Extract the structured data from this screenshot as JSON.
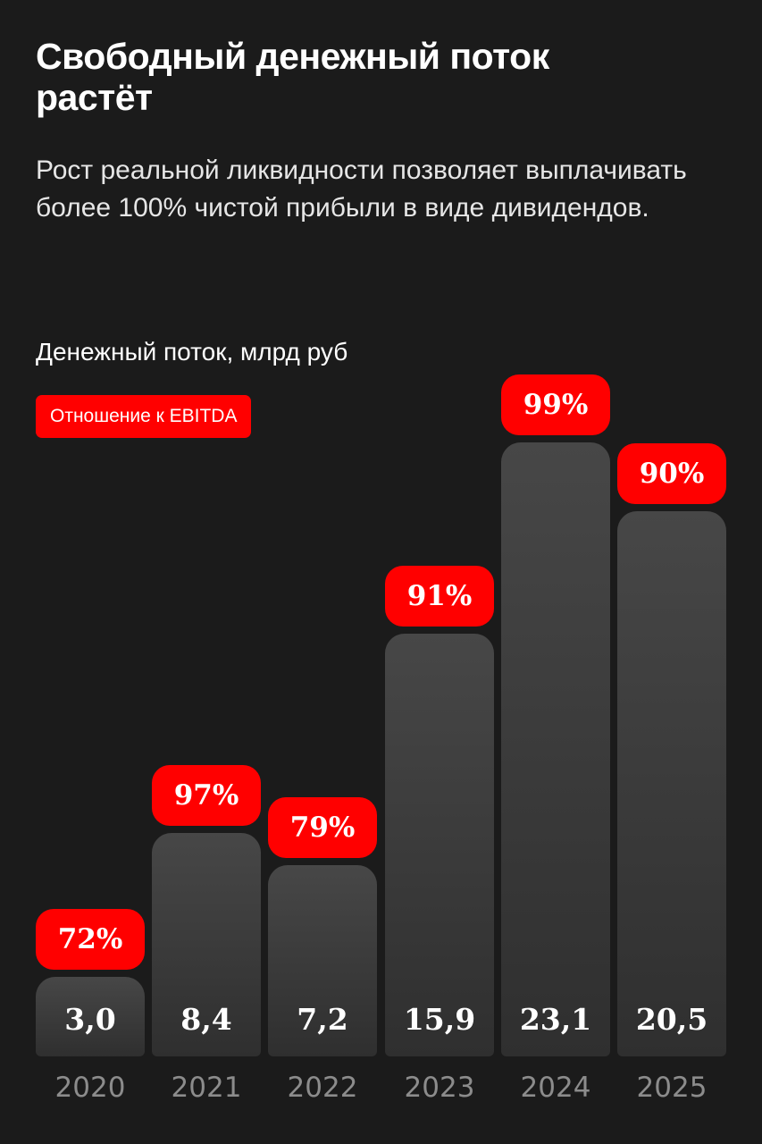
{
  "header": {
    "title": "Свободный денежный поток растёт",
    "subtitle": "Рост реальной ликвидности позволяет выплачивать более 100% чистой прибыли в виде дивидендов."
  },
  "chart": {
    "title": "Денежный поток, млрд руб",
    "legend_label": "Отношение к EBITDA"
  },
  "colors": {
    "background": "#1b1b1b",
    "bar": "#474747",
    "accent": "#ff0000",
    "year_label": "#8c8c8c"
  },
  "chart_data": {
    "type": "bar",
    "title": "Денежный поток, млрд руб",
    "categories": [
      "2020",
      "2021",
      "2022",
      "2023",
      "2024",
      "2025"
    ],
    "series": [
      {
        "name": "Денежный поток, млрд руб",
        "values": [
          3.0,
          8.4,
          7.2,
          15.9,
          23.1,
          20.5
        ],
        "labels": [
          "3,0",
          "8,4",
          "7,2",
          "15,9",
          "23,1",
          "20,5"
        ]
      },
      {
        "name": "Отношение к EBITDA",
        "values": [
          72,
          97,
          79,
          91,
          99,
          90
        ],
        "labels": [
          "72%",
          "97%",
          "79%",
          "91%",
          "99%",
          "90%"
        ]
      }
    ],
    "xlabel": "",
    "ylabel": "",
    "grid": false,
    "legend_position": "top-left"
  }
}
